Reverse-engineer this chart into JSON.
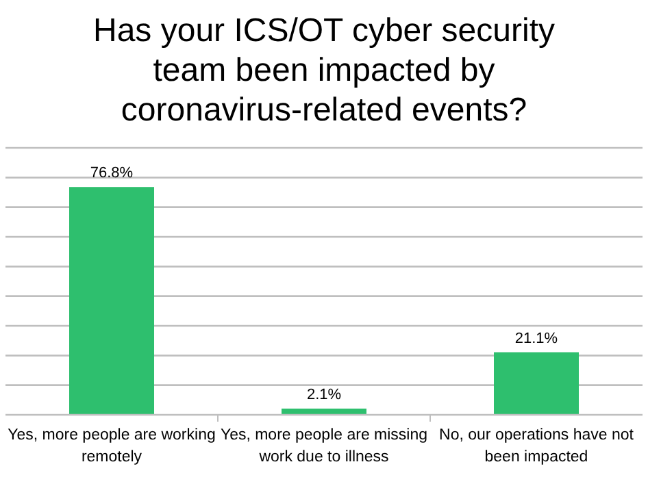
{
  "chart_data": {
    "type": "bar",
    "title": "Has your ICS/OT cyber security team been impacted by coronavirus-related events?",
    "categories": [
      "Yes, more people are working remotely",
      "Yes, more people are missing work due to illness",
      "No, our operations have not been impacted"
    ],
    "values": [
      76.8,
      2.1,
      21.1
    ],
    "value_labels": [
      "76.8%",
      "2.1%",
      "21.1%"
    ],
    "color": "#2ebf6e",
    "ylim": [
      0,
      90
    ],
    "yticks": [
      {
        "value": 0,
        "label": null
      },
      {
        "value": 10,
        "label": null
      },
      {
        "value": 20,
        "label": null
      },
      {
        "value": 30,
        "label": null
      },
      {
        "value": 40,
        "label": null
      },
      {
        "value": 50,
        "label": null
      },
      {
        "value": 60,
        "label": null
      },
      {
        "value": 70,
        "label": null
      },
      {
        "value": 80,
        "label": null
      },
      {
        "value": 90,
        "label": null
      }
    ],
    "tick_labels": "x",
    "grid": "y"
  }
}
